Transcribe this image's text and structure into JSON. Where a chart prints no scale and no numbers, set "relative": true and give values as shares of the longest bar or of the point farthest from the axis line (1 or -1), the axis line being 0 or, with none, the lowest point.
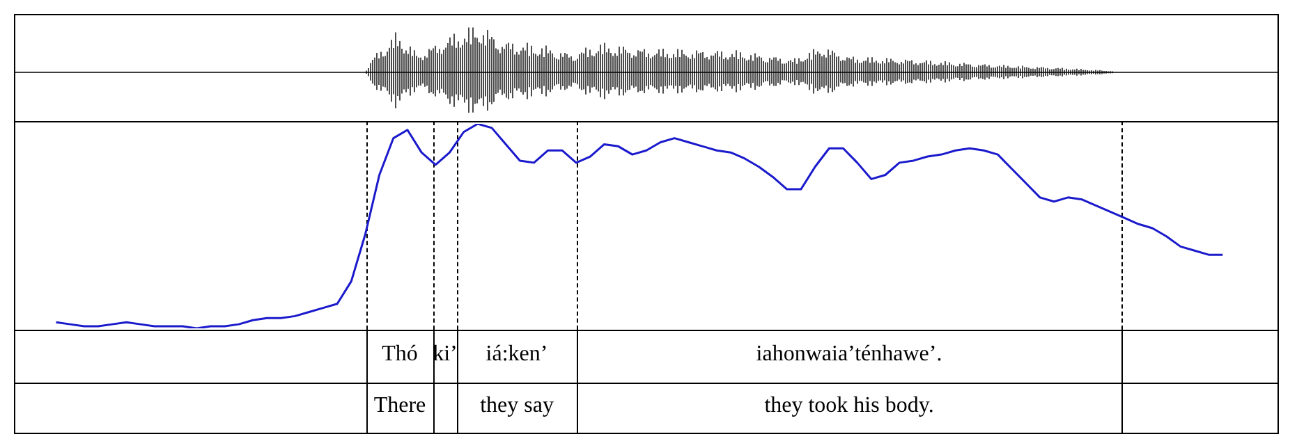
{
  "chart_data": {
    "type": "line",
    "relative": true,
    "grid": "x",
    "marker": "none",
    "line_style": "solid",
    "categories": [
      null,
      null,
      null,
      null,
      null,
      null,
      null,
      null,
      null,
      null,
      null,
      null,
      null,
      null,
      null,
      null,
      null,
      null,
      null,
      null,
      null,
      null,
      null,
      null,
      null,
      null,
      null,
      null,
      null,
      null,
      null,
      null,
      null,
      null,
      null,
      null,
      null,
      null,
      null,
      null,
      null,
      null,
      null,
      null,
      null,
      null,
      null,
      null,
      null,
      null,
      null,
      null,
      null,
      null,
      null,
      null,
      null,
      null,
      null,
      null,
      null,
      null,
      null,
      null,
      null,
      null,
      null,
      null,
      null,
      null,
      null,
      null,
      null,
      null,
      null,
      null,
      null,
      null,
      null,
      null,
      null,
      null,
      null,
      null,
      null,
      null,
      null,
      null,
      null,
      null,
      null
    ],
    "series": [
      {
        "color": "#1a1acc",
        "values": [
          null,
          null,
          null,
          0.03,
          0.02,
          0.01,
          0.01,
          0.02,
          0.03,
          0.02,
          0.01,
          0.01,
          0.01,
          0,
          0.01,
          0.01,
          0.02,
          0.04,
          0.05,
          0.05,
          0.06,
          0.08,
          0.1,
          0.12,
          0.23,
          0.46,
          0.75,
          0.93,
          0.97,
          0.86,
          0.8,
          0.86,
          0.96,
          1,
          0.98,
          0.9,
          0.82,
          0.81,
          0.87,
          0.87,
          0.81,
          0.84,
          0.9,
          0.89,
          0.85,
          0.87,
          0.91,
          0.93,
          0.91,
          0.89,
          0.87,
          0.86,
          0.83,
          0.79,
          0.74,
          0.68,
          0.68,
          0.79,
          0.88,
          0.88,
          0.81,
          0.73,
          0.75,
          0.81,
          0.82,
          0.84,
          0.85,
          0.87,
          0.88,
          0.87,
          0.85,
          0.78,
          0.71,
          0.64,
          0.62,
          0.64,
          0.63,
          0.6,
          0.57,
          0.54,
          0.51,
          0.49,
          0.45,
          0.4,
          0.38,
          0.36,
          0.36,
          null,
          null,
          null,
          null
        ]
      }
    ],
    "annotations": [
      "Thó",
      "ki’",
      "iá:ken’",
      "iahonwaia’ténhawe’.",
      "There",
      "they say",
      "they took his body."
    ]
  }
}
